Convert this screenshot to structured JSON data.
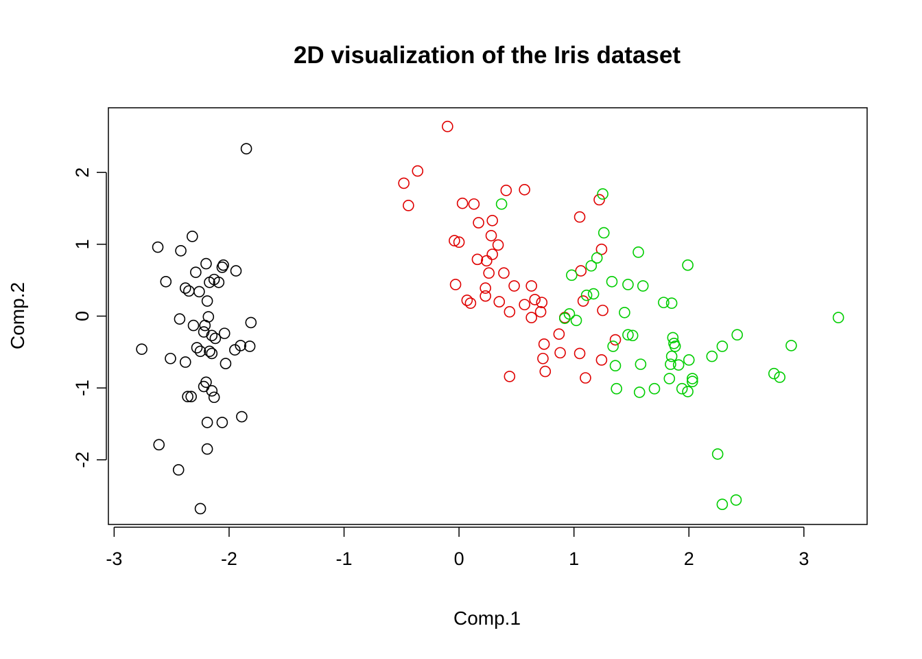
{
  "chart_data": {
    "type": "scatter",
    "title": "2D visualization of the Iris dataset",
    "xlabel": "Comp.1",
    "ylabel": "Comp.2",
    "xlim": [
      -3.05,
      3.55
    ],
    "ylim": [
      -2.9,
      2.9
    ],
    "x_ticks": [
      -3,
      -2,
      -1,
      0,
      1,
      2,
      3
    ],
    "x_tick_labels": [
      "-3",
      "-2",
      "-1",
      "0",
      "1",
      "2",
      "3"
    ],
    "y_ticks": [
      -2,
      -1,
      0,
      1,
      2
    ],
    "y_tick_labels": [
      "-2",
      "-1",
      "0",
      "1",
      "2"
    ],
    "grid": false,
    "legend": "none",
    "marker": "open-circle",
    "series": [
      {
        "color": "#000000",
        "points": [
          [
            -2.76,
            -0.46
          ],
          [
            -2.61,
            -1.79
          ],
          [
            -2.62,
            0.96
          ],
          [
            -2.55,
            0.48
          ],
          [
            -2.51,
            -0.59
          ],
          [
            -2.44,
            -2.14
          ],
          [
            -2.42,
            0.91
          ],
          [
            -2.43,
            -0.04
          ],
          [
            -2.38,
            0.39
          ],
          [
            -2.38,
            -0.64
          ],
          [
            -2.36,
            -1.12
          ],
          [
            -2.35,
            0.35
          ],
          [
            -2.33,
            -1.12
          ],
          [
            -2.32,
            1.11
          ],
          [
            -2.31,
            -0.13
          ],
          [
            -2.29,
            0.61
          ],
          [
            -2.28,
            -0.44
          ],
          [
            -2.26,
            0.34
          ],
          [
            -2.25,
            -0.49
          ],
          [
            -2.25,
            -2.68
          ],
          [
            -2.22,
            -0.22
          ],
          [
            -2.22,
            -0.98
          ],
          [
            -2.21,
            -0.13
          ],
          [
            -2.2,
            0.73
          ],
          [
            -2.2,
            -0.92
          ],
          [
            -2.19,
            -1.48
          ],
          [
            -2.19,
            0.21
          ],
          [
            -2.19,
            -1.85
          ],
          [
            -2.18,
            -0.01
          ],
          [
            -2.17,
            -0.49
          ],
          [
            -2.17,
            0.47
          ],
          [
            -2.15,
            -0.27
          ],
          [
            -2.15,
            -1.04
          ],
          [
            -2.15,
            -0.52
          ],
          [
            -2.13,
            0.51
          ],
          [
            -2.13,
            -1.13
          ],
          [
            -2.12,
            -0.31
          ],
          [
            -2.09,
            0.47
          ],
          [
            -2.06,
            0.68
          ],
          [
            -2.06,
            -1.48
          ],
          [
            -2.05,
            0.71
          ],
          [
            -2.04,
            -0.24
          ],
          [
            -2.03,
            -0.66
          ],
          [
            -1.95,
            -0.47
          ],
          [
            -1.94,
            0.63
          ],
          [
            -1.9,
            -0.41
          ],
          [
            -1.89,
            -1.4
          ],
          [
            -1.85,
            2.33
          ],
          [
            -1.82,
            -0.42
          ],
          [
            -1.81,
            -0.09
          ]
        ]
      },
      {
        "color": "#df0000",
        "points": [
          [
            -0.48,
            1.85
          ],
          [
            -0.44,
            1.54
          ],
          [
            -0.36,
            2.02
          ],
          [
            -0.1,
            2.64
          ],
          [
            -0.04,
            1.05
          ],
          [
            -0.03,
            0.44
          ],
          [
            0.0,
            1.03
          ],
          [
            0.03,
            1.57
          ],
          [
            0.07,
            0.22
          ],
          [
            0.1,
            0.18
          ],
          [
            0.13,
            1.56
          ],
          [
            0.16,
            0.79
          ],
          [
            0.17,
            1.3
          ],
          [
            0.23,
            0.28
          ],
          [
            0.23,
            0.39
          ],
          [
            0.24,
            0.77
          ],
          [
            0.26,
            0.6
          ],
          [
            0.28,
            1.12
          ],
          [
            0.29,
            0.86
          ],
          [
            0.29,
            1.33
          ],
          [
            0.34,
            0.99
          ],
          [
            0.35,
            0.2
          ],
          [
            0.39,
            0.6
          ],
          [
            0.41,
            1.75
          ],
          [
            0.44,
            0.06
          ],
          [
            0.44,
            -0.84
          ],
          [
            0.48,
            0.42
          ],
          [
            0.57,
            0.16
          ],
          [
            0.57,
            1.76
          ],
          [
            0.63,
            0.42
          ],
          [
            0.63,
            -0.02
          ],
          [
            0.66,
            0.23
          ],
          [
            0.71,
            0.06
          ],
          [
            0.72,
            0.19
          ],
          [
            0.73,
            -0.59
          ],
          [
            0.74,
            -0.39
          ],
          [
            0.75,
            -0.77
          ],
          [
            0.87,
            -0.25
          ],
          [
            0.88,
            -0.51
          ],
          [
            0.92,
            -0.02
          ],
          [
            1.05,
            1.38
          ],
          [
            1.05,
            -0.52
          ],
          [
            1.06,
            0.63
          ],
          [
            1.08,
            0.21
          ],
          [
            1.1,
            -0.86
          ],
          [
            1.22,
            1.62
          ],
          [
            1.24,
            0.93
          ],
          [
            1.24,
            -0.61
          ],
          [
            1.25,
            0.08
          ],
          [
            1.36,
            -0.33
          ]
        ]
      },
      {
        "color": "#00cd00",
        "points": [
          [
            0.37,
            1.56
          ],
          [
            0.92,
            -0.03
          ],
          [
            0.96,
            0.03
          ],
          [
            0.98,
            0.57
          ],
          [
            1.02,
            -0.06
          ],
          [
            1.11,
            0.29
          ],
          [
            1.15,
            0.7
          ],
          [
            1.17,
            0.31
          ],
          [
            1.2,
            0.81
          ],
          [
            1.25,
            1.7
          ],
          [
            1.26,
            1.16
          ],
          [
            1.33,
            0.48
          ],
          [
            1.34,
            -0.42
          ],
          [
            1.36,
            -0.69
          ],
          [
            1.37,
            -1.01
          ],
          [
            1.44,
            0.05
          ],
          [
            1.47,
            0.44
          ],
          [
            1.47,
            -0.26
          ],
          [
            1.51,
            -0.27
          ],
          [
            1.56,
            0.89
          ],
          [
            1.57,
            -1.06
          ],
          [
            1.58,
            -0.67
          ],
          [
            1.6,
            0.42
          ],
          [
            1.7,
            -1.01
          ],
          [
            1.78,
            0.19
          ],
          [
            1.83,
            -0.87
          ],
          [
            1.84,
            -0.67
          ],
          [
            1.85,
            -0.56
          ],
          [
            1.85,
            0.18
          ],
          [
            1.86,
            -0.3
          ],
          [
            1.87,
            -0.38
          ],
          [
            1.88,
            -0.42
          ],
          [
            1.91,
            -0.68
          ],
          [
            1.94,
            -1.01
          ],
          [
            1.99,
            -1.05
          ],
          [
            1.99,
            0.71
          ],
          [
            2.0,
            -0.61
          ],
          [
            2.03,
            -0.91
          ],
          [
            2.03,
            -0.87
          ],
          [
            2.2,
            -0.56
          ],
          [
            2.25,
            -1.92
          ],
          [
            2.29,
            -0.42
          ],
          [
            2.29,
            -2.62
          ],
          [
            2.41,
            -2.56
          ],
          [
            2.42,
            -0.26
          ],
          [
            2.74,
            -0.8
          ],
          [
            2.79,
            -0.85
          ],
          [
            2.89,
            -0.41
          ],
          [
            3.3,
            -0.02
          ]
        ]
      }
    ]
  }
}
